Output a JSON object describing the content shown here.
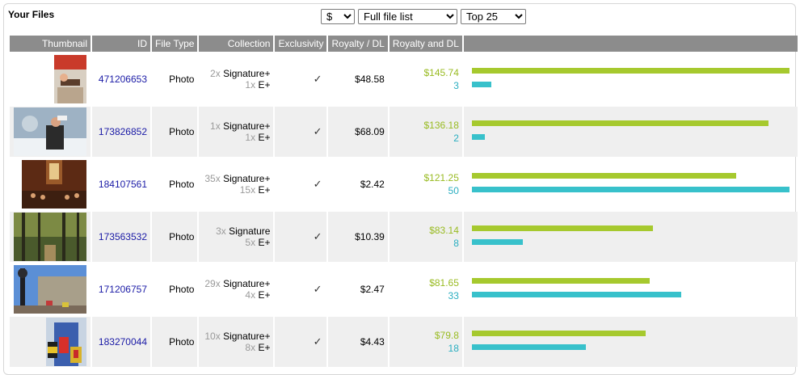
{
  "header": {
    "title": "Your Files"
  },
  "controls": {
    "currency": "$",
    "list_mode": "Full file list",
    "top_n": "Top 25"
  },
  "columns": [
    "Thumbnail",
    "ID",
    "File Type",
    "Collection",
    "Exclusivity",
    "Royalty / DL",
    "Royalty and DL",
    ""
  ],
  "colors": {
    "money": "#a6c92e",
    "downloads": "#38c1cb",
    "header_bg": "#8c8c8c"
  },
  "files": [
    {
      "id": "471206653",
      "type": "Photo",
      "c1_count": "2x",
      "c1_name": "Signature+",
      "c2_count": "1x",
      "c2_name": "E+",
      "exclusive": "✓",
      "royalty_dl": "$48.58",
      "royalty": "$145.74",
      "downloads": "3",
      "royalty_value": 145.74,
      "downloads_value": 3
    },
    {
      "id": "173826852",
      "type": "Photo",
      "c1_count": "1x",
      "c1_name": "Signature+",
      "c2_count": "1x",
      "c2_name": "E+",
      "exclusive": "✓",
      "royalty_dl": "$68.09",
      "royalty": "$136.18",
      "downloads": "2",
      "royalty_value": 136.18,
      "downloads_value": 2
    },
    {
      "id": "184107561",
      "type": "Photo",
      "c1_count": "35x",
      "c1_name": "Signature+",
      "c2_count": "15x",
      "c2_name": "E+",
      "exclusive": "✓",
      "royalty_dl": "$2.42",
      "royalty": "$121.25",
      "downloads": "50",
      "royalty_value": 121.25,
      "downloads_value": 50
    },
    {
      "id": "173563532",
      "type": "Photo",
      "c1_count": "3x",
      "c1_name": "Signature",
      "c2_count": "5x",
      "c2_name": "E+",
      "exclusive": "✓",
      "royalty_dl": "$10.39",
      "royalty": "$83.14",
      "downloads": "8",
      "royalty_value": 83.14,
      "downloads_value": 8
    },
    {
      "id": "171206757",
      "type": "Photo",
      "c1_count": "29x",
      "c1_name": "Signature+",
      "c2_count": "4x",
      "c2_name": "E+",
      "exclusive": "✓",
      "royalty_dl": "$2.47",
      "royalty": "$81.65",
      "downloads": "33",
      "royalty_value": 81.65,
      "downloads_value": 33
    },
    {
      "id": "183270044",
      "type": "Photo",
      "c1_count": "10x",
      "c1_name": "Signature+",
      "c2_count": "8x",
      "c2_name": "E+",
      "exclusive": "✓",
      "royalty_dl": "$4.43",
      "royalty": "$79.8",
      "downloads": "18",
      "royalty_value": 79.8,
      "downloads_value": 18
    }
  ]
}
